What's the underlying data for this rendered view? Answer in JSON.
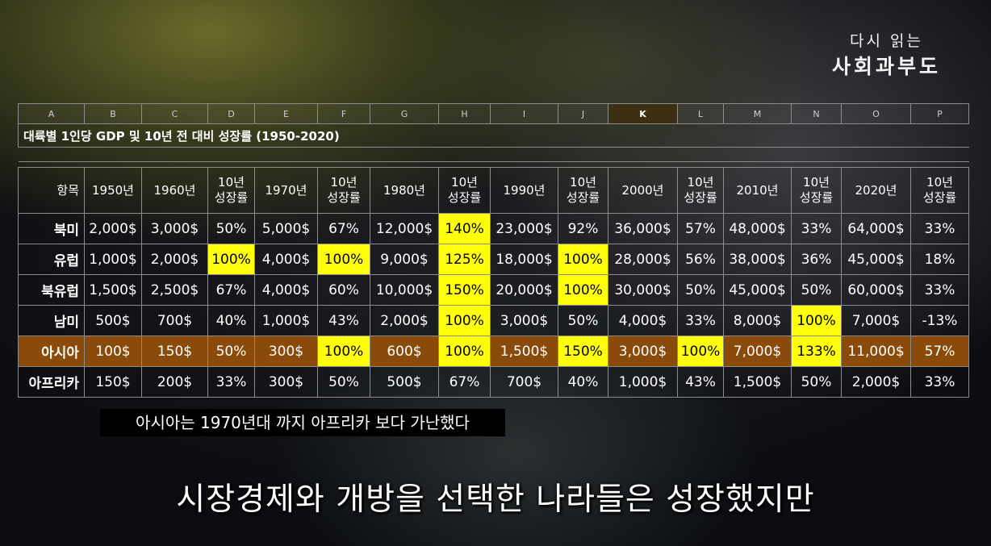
{
  "logo": {
    "line1": "다시 읽는",
    "line2": "사회과부도"
  },
  "sheet": {
    "columns": [
      "A",
      "B",
      "C",
      "D",
      "E",
      "F",
      "G",
      "H",
      "I",
      "J",
      "K",
      "L",
      "M",
      "N",
      "O",
      "P"
    ],
    "selected_column": "K",
    "title": "대륙별 1인당 GDP 및 10년 전 대비 성장률 (1950-2020)",
    "header": {
      "item": "항목",
      "y1950": "1950년",
      "y1960": "1960년",
      "y1970": "1970년",
      "y1980": "1980년",
      "y1990": "1990년",
      "y2000": "2000년",
      "y2010": "2010년",
      "y2020": "2020년",
      "growth_line1": "10년",
      "growth_line2": "성장률"
    },
    "rows": [
      {
        "label": "북미",
        "cells": [
          "2,000$",
          "3,000$",
          "50%",
          "5,000$",
          "67%",
          "12,000$",
          "140%",
          "23,000$",
          "92%",
          "36,000$",
          "57%",
          "48,000$",
          "33%",
          "64,000$",
          "33%"
        ]
      },
      {
        "label": "유럽",
        "cells": [
          "1,000$",
          "2,000$",
          "100%",
          "4,000$",
          "100%",
          "9,000$",
          "125%",
          "18,000$",
          "100%",
          "28,000$",
          "56%",
          "38,000$",
          "36%",
          "45,000$",
          "18%"
        ]
      },
      {
        "label": "북유럽",
        "cells": [
          "1,500$",
          "2,500$",
          "67%",
          "4,000$",
          "60%",
          "10,000$",
          "150%",
          "20,000$",
          "100%",
          "30,000$",
          "50%",
          "45,000$",
          "50%",
          "60,000$",
          "33%"
        ]
      },
      {
        "label": "남미",
        "cells": [
          "500$",
          "700$",
          "40%",
          "1,000$",
          "43%",
          "2,000$",
          "100%",
          "3,000$",
          "50%",
          "4,000$",
          "33%",
          "8,000$",
          "100%",
          "7,000$",
          "-13%"
        ]
      },
      {
        "label": "아시아",
        "cells": [
          "100$",
          "150$",
          "50%",
          "300$",
          "100%",
          "600$",
          "100%",
          "1,500$",
          "150%",
          "3,000$",
          "100%",
          "7,000$",
          "133%",
          "11,000$",
          "57%"
        ]
      },
      {
        "label": "아프리카",
        "cells": [
          "150$",
          "200$",
          "33%",
          "300$",
          "50%",
          "500$",
          "67%",
          "700$",
          "40%",
          "1,000$",
          "43%",
          "1,500$",
          "50%",
          "2,000$",
          "33%"
        ]
      }
    ],
    "highlight_color": "#ffff0a",
    "highlighted_row_color": "#8a4a09"
  },
  "caption": "아시아는 1970년대 까지 아프리카 보다 가난했다",
  "subtitle": "시장경제와 개방을 선택한 나라들은 성장했지만"
}
